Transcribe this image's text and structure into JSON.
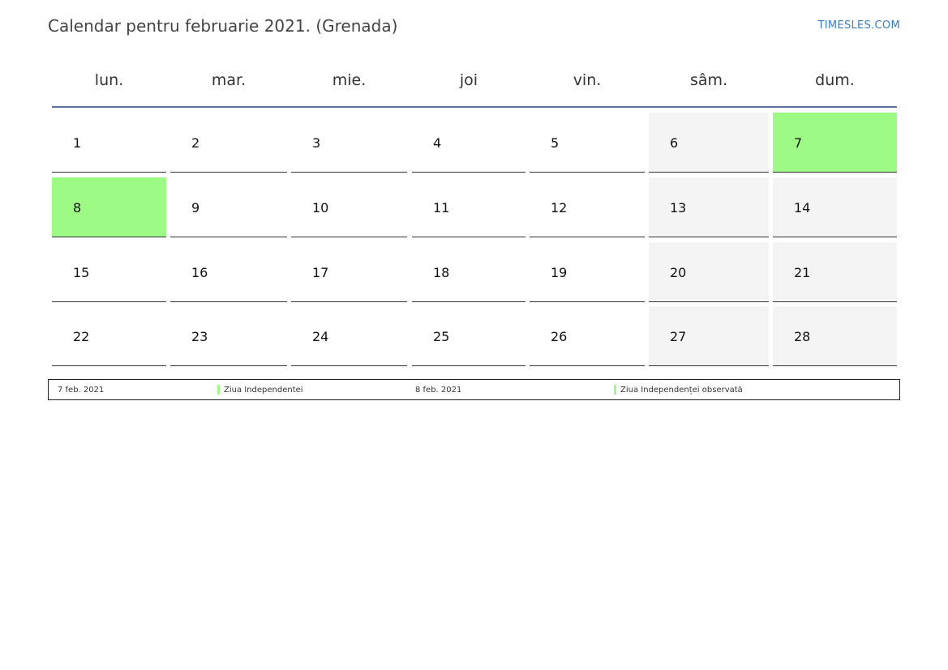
{
  "header": {
    "title": "Calendar pentru februarie 2021. (Grenada)",
    "brand": "TIMESLES.COM"
  },
  "colors": {
    "holiday": "#9dfa84",
    "weekend": "#f4f4f4",
    "header_rule": "#5b7199",
    "brand": "#3a7dbd"
  },
  "calendar": {
    "weekdays": [
      "lun.",
      "mar.",
      "mie.",
      "joi",
      "vin.",
      "sâm.",
      "dum."
    ],
    "weeks": [
      [
        {
          "day": "1",
          "type": "normal"
        },
        {
          "day": "2",
          "type": "normal"
        },
        {
          "day": "3",
          "type": "normal"
        },
        {
          "day": "4",
          "type": "normal"
        },
        {
          "day": "5",
          "type": "normal"
        },
        {
          "day": "6",
          "type": "weekend"
        },
        {
          "day": "7",
          "type": "holiday"
        }
      ],
      [
        {
          "day": "8",
          "type": "holiday"
        },
        {
          "day": "9",
          "type": "normal"
        },
        {
          "day": "10",
          "type": "normal"
        },
        {
          "day": "11",
          "type": "normal"
        },
        {
          "day": "12",
          "type": "normal"
        },
        {
          "day": "13",
          "type": "weekend"
        },
        {
          "day": "14",
          "type": "weekend"
        }
      ],
      [
        {
          "day": "15",
          "type": "normal"
        },
        {
          "day": "16",
          "type": "normal"
        },
        {
          "day": "17",
          "type": "normal"
        },
        {
          "day": "18",
          "type": "normal"
        },
        {
          "day": "19",
          "type": "normal"
        },
        {
          "day": "20",
          "type": "weekend"
        },
        {
          "day": "21",
          "type": "weekend"
        }
      ],
      [
        {
          "day": "22",
          "type": "normal"
        },
        {
          "day": "23",
          "type": "normal"
        },
        {
          "day": "24",
          "type": "normal"
        },
        {
          "day": "25",
          "type": "normal"
        },
        {
          "day": "26",
          "type": "normal"
        },
        {
          "day": "27",
          "type": "weekend"
        },
        {
          "day": "28",
          "type": "weekend"
        }
      ]
    ]
  },
  "legend": [
    {
      "date": "7 feb. 2021",
      "name": "Ziua Independentei"
    },
    {
      "date": "8 feb. 2021",
      "name": "Ziua Independenței observată"
    }
  ]
}
